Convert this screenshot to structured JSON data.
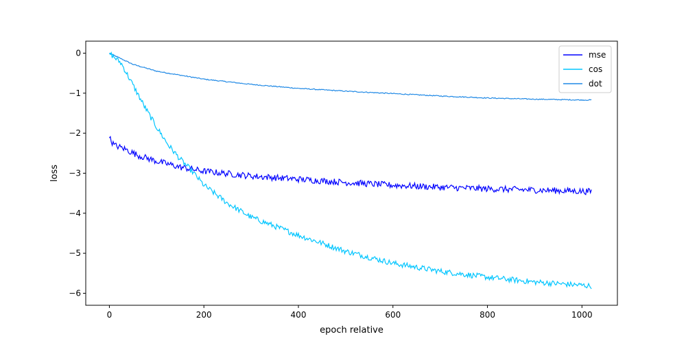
{
  "chart_data": {
    "type": "line",
    "title": "",
    "xlabel": "epoch relative",
    "ylabel": "loss",
    "xlim": [
      -50,
      1075
    ],
    "ylim": [
      -6.3,
      0.3
    ],
    "xticks": [
      0,
      200,
      400,
      600,
      800,
      1000
    ],
    "yticks": [
      0,
      -1,
      -2,
      -3,
      -4,
      -5,
      -6
    ],
    "xtick_labels": [
      "0",
      "200",
      "400",
      "600",
      "800",
      "1000"
    ],
    "ytick_labels": [
      "0",
      "−1",
      "−2",
      "−3",
      "−4",
      "−5",
      "−6"
    ],
    "grid": false,
    "legend_position": "top-right",
    "series": [
      {
        "name": "mse",
        "color": "#0000ff",
        "noise": 0.08,
        "points": [
          [
            0,
            -2.12
          ],
          [
            10,
            -2.3
          ],
          [
            30,
            -2.38
          ],
          [
            60,
            -2.55
          ],
          [
            100,
            -2.7
          ],
          [
            150,
            -2.85
          ],
          [
            200,
            -2.95
          ],
          [
            300,
            -3.07
          ],
          [
            400,
            -3.15
          ],
          [
            500,
            -3.23
          ],
          [
            600,
            -3.3
          ],
          [
            700,
            -3.35
          ],
          [
            800,
            -3.39
          ],
          [
            900,
            -3.42
          ],
          [
            1000,
            -3.45
          ],
          [
            1020,
            -3.46
          ]
        ]
      },
      {
        "name": "cos",
        "color": "#00c5ff",
        "noise": 0.07,
        "points": [
          [
            0,
            0.0
          ],
          [
            25,
            -0.25
          ],
          [
            50,
            -0.8
          ],
          [
            75,
            -1.35
          ],
          [
            100,
            -1.85
          ],
          [
            125,
            -2.3
          ],
          [
            150,
            -2.65
          ],
          [
            175,
            -2.95
          ],
          [
            200,
            -3.3
          ],
          [
            250,
            -3.75
          ],
          [
            300,
            -4.1
          ],
          [
            400,
            -4.55
          ],
          [
            500,
            -4.95
          ],
          [
            600,
            -5.25
          ],
          [
            700,
            -5.45
          ],
          [
            800,
            -5.6
          ],
          [
            900,
            -5.72
          ],
          [
            1000,
            -5.8
          ],
          [
            1020,
            -5.82
          ]
        ]
      },
      {
        "name": "dot",
        "color": "#1e88e5",
        "noise": 0.012,
        "points": [
          [
            0,
            0.0
          ],
          [
            50,
            -0.28
          ],
          [
            100,
            -0.45
          ],
          [
            200,
            -0.65
          ],
          [
            300,
            -0.78
          ],
          [
            400,
            -0.88
          ],
          [
            500,
            -0.95
          ],
          [
            600,
            -1.01
          ],
          [
            700,
            -1.07
          ],
          [
            800,
            -1.12
          ],
          [
            900,
            -1.15
          ],
          [
            1000,
            -1.17
          ],
          [
            1020,
            -1.17
          ]
        ]
      }
    ]
  }
}
